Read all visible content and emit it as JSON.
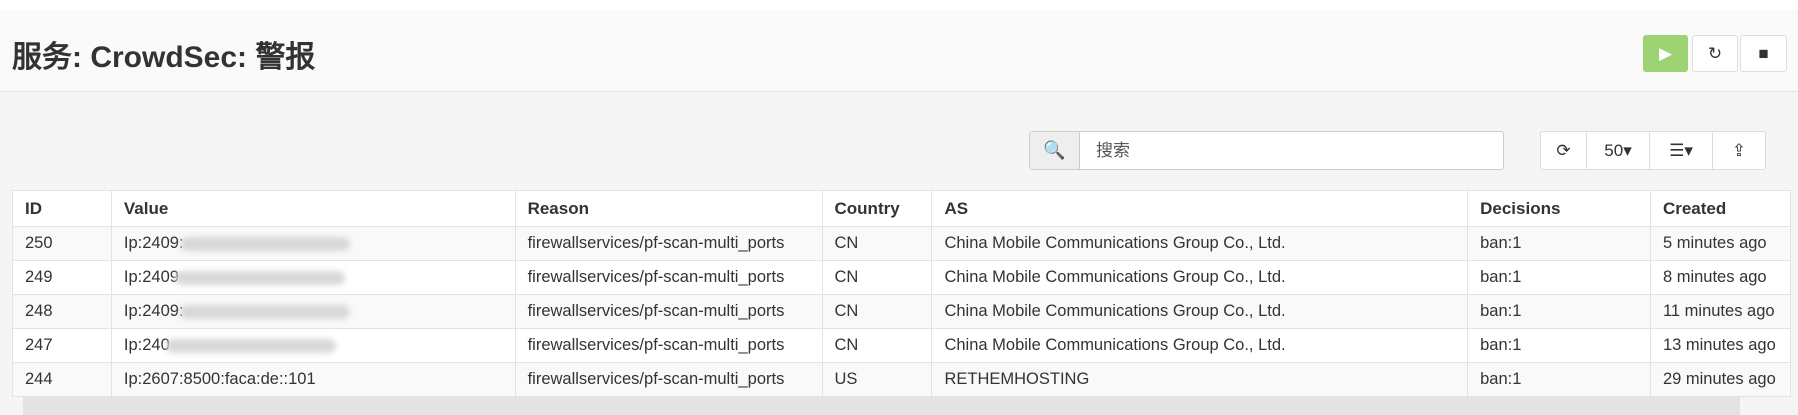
{
  "header": {
    "title": "服务: CrowdSec: 警报",
    "buttons": [
      {
        "icon": "play-icon",
        "glyph": "▶",
        "color": "#9ed374"
      },
      {
        "icon": "restart-icon",
        "glyph": "↻"
      },
      {
        "icon": "stop-icon",
        "glyph": "■"
      }
    ]
  },
  "toolbar": {
    "search_placeholder": "搜索",
    "search_icon": "🔍",
    "refresh_glyph": "⟳",
    "page_size": "50",
    "columns_glyph": "☰",
    "export_glyph": "⇪",
    "caret": "▾"
  },
  "table": {
    "columns": [
      "ID",
      "Value",
      "Reason",
      "Country",
      "AS",
      "Decisions",
      "Created"
    ],
    "rows": [
      {
        "id": "250",
        "value": "Ip:2409:",
        "reason": "firewallservices/pf-scan-multi_ports",
        "country": "CN",
        "as": "China Mobile Communications Group Co., Ltd.",
        "decisions": "ban:1",
        "created": "5 minutes ago"
      },
      {
        "id": "249",
        "value": "Ip:2409",
        "reason": "firewallservices/pf-scan-multi_ports",
        "country": "CN",
        "as": "China Mobile Communications Group Co., Ltd.",
        "decisions": "ban:1",
        "created": "8 minutes ago"
      },
      {
        "id": "248",
        "value": "Ip:2409:",
        "reason": "firewallservices/pf-scan-multi_ports",
        "country": "CN",
        "as": "China Mobile Communications Group Co., Ltd.",
        "decisions": "ban:1",
        "created": "11 minutes ago"
      },
      {
        "id": "247",
        "value": "Ip:240",
        "reason": "firewallservices/pf-scan-multi_ports",
        "country": "CN",
        "as": "China Mobile Communications Group Co., Ltd.",
        "decisions": "ban:1",
        "created": "13 minutes ago"
      },
      {
        "id": "244",
        "value": "Ip:2607:8500:faca:de::101",
        "reason": "firewallservices/pf-scan-multi_ports",
        "country": "US",
        "as": "RETHEMHOSTING",
        "decisions": "ban:1",
        "created": "29 minutes ago"
      }
    ]
  }
}
